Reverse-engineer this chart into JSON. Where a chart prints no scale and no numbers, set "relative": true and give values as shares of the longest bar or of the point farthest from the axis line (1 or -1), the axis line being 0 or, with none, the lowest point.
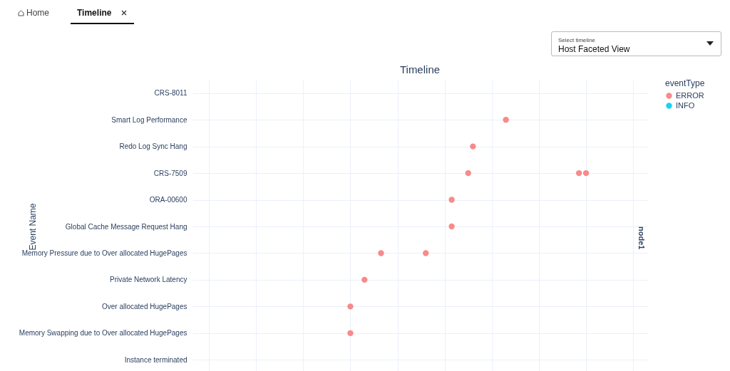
{
  "chart_data": {
    "type": "scatter",
    "title": "Timeline",
    "ylabel": "Event Name",
    "legend_title": "eventType",
    "orientation": "horizontal",
    "relative": true,
    "grid": true,
    "legend": "top right",
    "marker": "circle",
    "tick_labels": "y",
    "categories": [
      "CRS-8011",
      "Smart Log Performance",
      "Redo Log Sync Hang",
      "CRS-7509",
      "ORA-00600",
      "Global Cache Message Request Hang",
      "Memory Pressure due to Over allocated HugePages",
      "Private Network Latency",
      "Over allocated HugePages",
      "Memory Swapping due to Over allocated HugePages",
      "Instance terminated"
    ],
    "series": [
      {
        "name": "ERROR",
        "color": "#f88a8a",
        "x": [
          "Smart Log Performance",
          "Redo Log Sync Hang",
          "CRS-7509",
          "CRS-7509",
          "CRS-7509",
          "ORA-00600",
          "Global Cache Message Request Hang",
          "Memory Pressure due to Over allocated HugePages",
          "Memory Pressure due to Over allocated HugePages",
          "Private Network Latency",
          "Over allocated HugePages",
          "Memory Swapping due to Over allocated HugePages"
        ],
        "values": [
          0.66,
          0.52,
          0.5,
          0.97,
          1,
          0.43,
          0.43,
          0.13,
          0.32,
          0.06,
          0,
          0
        ]
      },
      {
        "name": "INFO",
        "color": "#19d3f3",
        "values": [
          null,
          null,
          null,
          null,
          null,
          null,
          null,
          null,
          null,
          null,
          null
        ]
      }
    ],
    "annotations": [
      "Home",
      "Timeline",
      "Select timeline",
      "Host Faceted View",
      "node1"
    ]
  }
}
